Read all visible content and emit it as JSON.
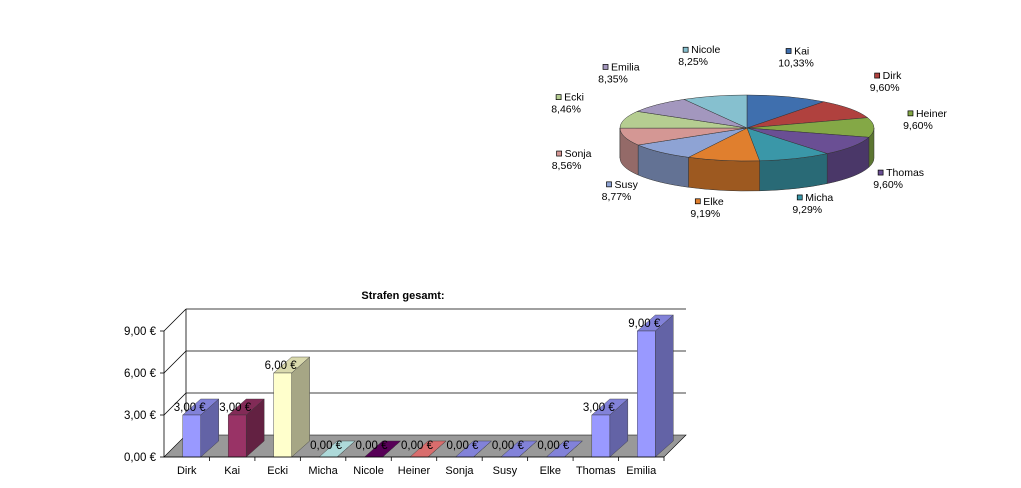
{
  "chart_data": [
    {
      "type": "pie",
      "title": "",
      "three_d": true,
      "slices": [
        {
          "label": "Kai",
          "percent_label": "10,33%",
          "value": 10.33,
          "color": "#3f6fae"
        },
        {
          "label": "Dirk",
          "percent_label": "9,60%",
          "value": 9.6,
          "color": "#b0413e"
        },
        {
          "label": "Heiner",
          "percent_label": "9,60%",
          "value": 9.6,
          "color": "#84a846"
        },
        {
          "label": "Thomas",
          "percent_label": "9,60%",
          "value": 9.6,
          "color": "#6a4f94"
        },
        {
          "label": "Micha",
          "percent_label": "9,29%",
          "value": 9.29,
          "color": "#3a97a8"
        },
        {
          "label": "Elke",
          "percent_label": "9,19%",
          "value": 9.19,
          "color": "#e07f2e"
        },
        {
          "label": "Susy",
          "percent_label": "8,77%",
          "value": 8.77,
          "color": "#8ea3d4"
        },
        {
          "label": "Sonja",
          "percent_label": "8,56%",
          "value": 8.56,
          "color": "#d49794"
        },
        {
          "label": "Ecki",
          "percent_label": "8,46%",
          "value": 8.46,
          "color": "#b5cd91"
        },
        {
          "label": "Emilia",
          "percent_label": "8,35%",
          "value": 8.35,
          "color": "#a397be"
        },
        {
          "label": "Nicole",
          "percent_label": "8,25%",
          "value": 8.25,
          "color": "#86c0cf"
        }
      ]
    },
    {
      "type": "bar",
      "three_d": true,
      "title": "Strafen gesamt:",
      "categories": [
        "Dirk",
        "Kai",
        "Ecki",
        "Micha",
        "Nicole",
        "Heiner",
        "Sonja",
        "Susy",
        "Elke",
        "Thomas",
        "Emilia"
      ],
      "values": [
        3,
        3,
        6,
        0,
        0,
        0,
        0,
        0,
        0,
        3,
        9
      ],
      "value_labels": [
        "3,00 €",
        "3,00 €",
        "6,00 €",
        "0,00 €",
        "0,00 €",
        "0,00 €",
        "0,00 €",
        "0,00 €",
        "0,00 €",
        "3,00 €",
        "9,00 €"
      ],
      "colors": [
        "#9999ff",
        "#993366",
        "#ffffcc",
        "#ccffff",
        "#660066",
        "#ff8080",
        "#9999ff",
        "#9999ff",
        "#9999ff",
        "#9999ff",
        "#9999ff"
      ],
      "y_ticks": [
        {
          "value": 0,
          "label": "0,00 €"
        },
        {
          "value": 3,
          "label": "3,00 €"
        },
        {
          "value": 6,
          "label": "6,00 €"
        },
        {
          "value": 9,
          "label": "9,00 €"
        }
      ],
      "ylim": [
        0,
        9
      ],
      "grid": true,
      "legend": "none"
    }
  ]
}
